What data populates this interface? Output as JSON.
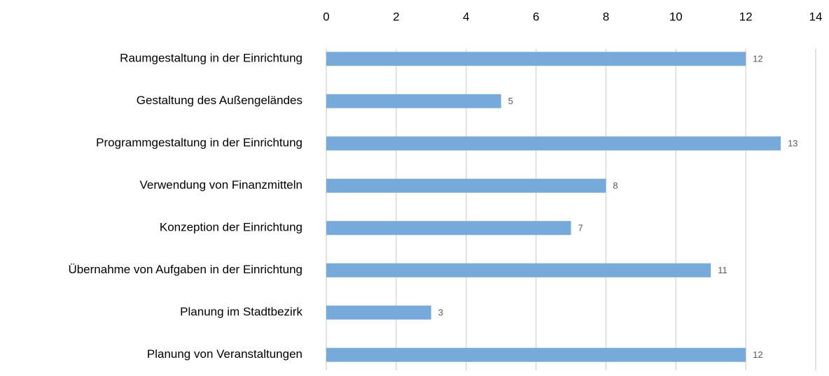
{
  "chart_data": {
    "type": "hbar",
    "categories": [
      "Raumgestaltung in der Einrichtung",
      "Gestaltung des Außengeländes",
      "Programmgestaltung in der Einrichtung",
      "Verwendung von Finanzmitteln",
      "Konzeption der Einrichtung",
      "Übernahme von Aufgaben in der Einrichtung",
      "Planung im Stadtbezirk",
      "Planung von Veranstaltungen"
    ],
    "values": [
      12,
      5,
      13,
      8,
      7,
      11,
      3,
      12
    ],
    "color": "#75aadb",
    "xlim": [
      0,
      14
    ],
    "xticks": [
      0,
      2,
      4,
      6,
      8,
      10,
      12,
      14
    ],
    "grid": true
  }
}
